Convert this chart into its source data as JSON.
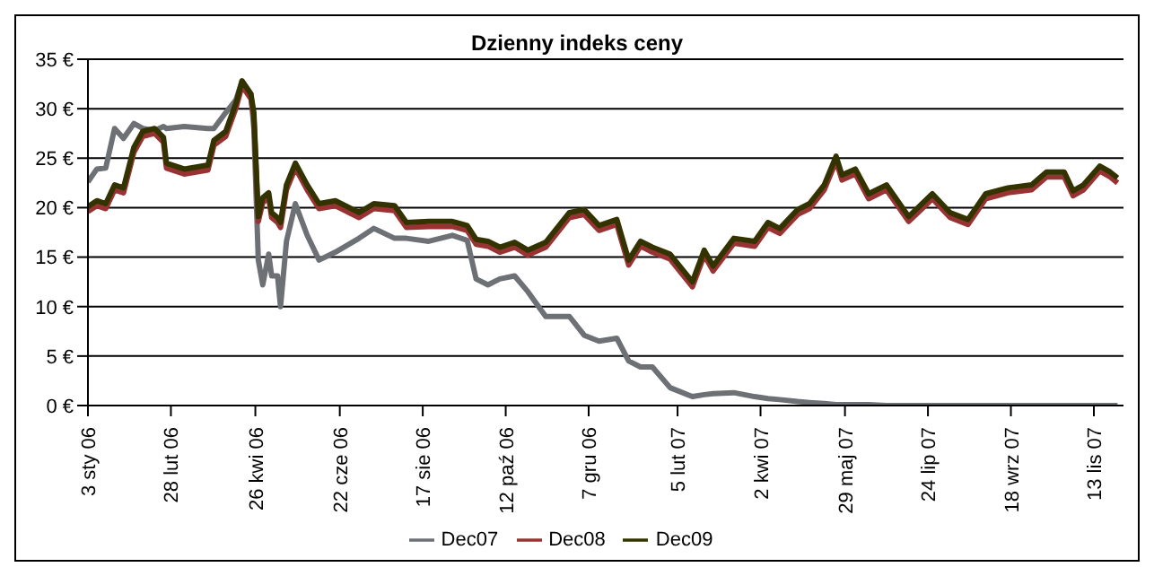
{
  "chart_data": {
    "type": "line",
    "title": "Dzienny indeks ceny",
    "x": [
      "2006-01-03",
      "2006-01-09",
      "2006-01-15",
      "2006-01-21",
      "2006-01-27",
      "2006-02-03",
      "2006-02-09",
      "2006-02-17",
      "2006-02-23",
      "2006-02-25",
      "2006-03-09",
      "2006-03-25",
      "2006-03-29",
      "2006-04-06",
      "2006-04-13",
      "2006-04-17",
      "2006-04-23",
      "2006-04-25",
      "2006-04-28",
      "2006-05-01",
      "2006-05-05",
      "2006-05-07",
      "2006-05-11",
      "2006-05-13",
      "2006-05-17",
      "2006-05-23",
      "2006-05-31",
      "2006-06-08",
      "2006-06-19",
      "2006-07-05",
      "2006-07-15",
      "2006-07-29",
      "2006-08-06",
      "2006-08-21",
      "2006-09-06",
      "2006-09-16",
      "2006-09-22",
      "2006-09-30",
      "2006-10-08",
      "2006-10-18",
      "2006-10-27",
      "2006-11-08",
      "2006-11-24",
      "2006-12-04",
      "2006-12-14",
      "2006-12-26",
      "2007-01-03",
      "2007-01-11",
      "2007-01-19",
      "2007-01-31",
      "2007-02-15",
      "2007-02-23",
      "2007-03-01",
      "2007-03-15",
      "2007-03-29",
      "2007-04-07",
      "2007-04-15",
      "2007-04-27",
      "2007-05-05",
      "2007-05-15",
      "2007-05-23",
      "2007-05-27",
      "2007-06-05",
      "2007-06-14",
      "2007-06-26",
      "2007-07-11",
      "2007-07-27",
      "2007-08-08",
      "2007-08-20",
      "2007-09-01",
      "2007-09-16",
      "2007-10-02",
      "2007-10-12",
      "2007-10-24",
      "2007-10-30",
      "2007-11-06",
      "2007-11-17",
      "2007-11-24",
      "2007-11-29"
    ],
    "series": [
      {
        "name": "Dec07",
        "color": "#6d7075",
        "values": [
          22.6,
          23.9,
          24,
          28,
          27,
          28.5,
          28,
          27.8,
          28.2,
          28,
          28.2,
          28,
          28,
          29.6,
          30.9,
          32.8,
          31.5,
          28,
          14.7,
          12.2,
          15.3,
          13.1,
          13.1,
          10,
          16.6,
          20.4,
          17.2,
          14.7,
          15.5,
          16.9,
          17.9,
          16.9,
          16.9,
          16.6,
          17.2,
          16.7,
          12.8,
          12.2,
          12.8,
          13.1,
          11.5,
          9,
          9,
          7.1,
          6.5,
          6.8,
          4.5,
          3.9,
          3.9,
          1.8,
          0.9,
          1.1,
          1.2,
          1.3,
          0.9,
          0.7,
          0.6,
          0.4,
          0.3,
          0.2,
          0.1,
          0.1,
          0.1,
          0.1,
          0,
          0,
          0,
          0,
          0,
          0,
          0,
          0,
          0,
          0,
          0,
          0,
          0,
          0,
          0
        ]
      },
      {
        "name": "Dec08",
        "color": "#993333",
        "values": [
          19.6,
          20.2,
          19.9,
          21.8,
          21.5,
          25.6,
          27.2,
          27.5,
          26.6,
          24,
          23.4,
          23.8,
          26.3,
          27.2,
          30.1,
          32.3,
          31,
          29.1,
          18.6,
          20.5,
          21,
          19,
          18.5,
          18,
          21.8,
          24,
          21.8,
          19.9,
          20.2,
          19,
          19.9,
          19.7,
          18,
          18.1,
          18.1,
          17.7,
          16.3,
          16.1,
          15.5,
          16,
          15.2,
          16,
          19,
          19.3,
          17.7,
          18.3,
          14.2,
          16.1,
          15.5,
          14.8,
          12,
          15.2,
          13.6,
          16.4,
          16.1,
          18,
          17.4,
          19.3,
          19.9,
          21.8,
          24.7,
          22.8,
          23.4,
          20.9,
          21.8,
          18.6,
          20.9,
          19,
          18.3,
          20.9,
          21.5,
          21.8,
          23.1,
          23.1,
          21.2,
          21.8,
          23.7,
          23.1,
          22.5
        ]
      },
      {
        "name": "Dec09",
        "color": "#333300",
        "values": [
          20.1,
          20.7,
          20.4,
          22.3,
          22,
          26.1,
          27.7,
          28,
          27.1,
          24.5,
          23.9,
          24.3,
          26.8,
          27.7,
          30.6,
          32.8,
          31.5,
          29.6,
          19.1,
          21,
          21.5,
          19.5,
          19,
          18.5,
          22.3,
          24.5,
          22.3,
          20.4,
          20.7,
          19.5,
          20.4,
          20.2,
          18.5,
          18.6,
          18.6,
          18.2,
          16.8,
          16.6,
          16,
          16.5,
          15.7,
          16.5,
          19.5,
          19.8,
          18.2,
          18.8,
          14.7,
          16.6,
          16,
          15.3,
          12.5,
          15.7,
          14.1,
          16.9,
          16.6,
          18.5,
          17.9,
          19.8,
          20.4,
          22.3,
          25.2,
          23.3,
          23.9,
          21.4,
          22.3,
          19.1,
          21.4,
          19.5,
          18.8,
          21.4,
          22,
          22.3,
          23.6,
          23.6,
          21.7,
          22.3,
          24.2,
          23.6,
          23
        ]
      }
    ],
    "xlim": [
      "2006-01-03",
      "2007-12-03"
    ],
    "xticks": [
      {
        "value": "2006-01-03",
        "label": "3 sty 06"
      },
      {
        "value": "2006-02-28",
        "label": "28 lut 06"
      },
      {
        "value": "2006-04-26",
        "label": "26 kwi 06"
      },
      {
        "value": "2006-06-22",
        "label": "22 cze 06"
      },
      {
        "value": "2006-08-17",
        "label": "17 sie 06"
      },
      {
        "value": "2006-10-12",
        "label": "12 paź 06"
      },
      {
        "value": "2006-12-07",
        "label": "7 gru 06"
      },
      {
        "value": "2007-02-05",
        "label": "5 lut 07"
      },
      {
        "value": "2007-04-02",
        "label": "2 kwi 07"
      },
      {
        "value": "2007-05-29",
        "label": "29 maj 07"
      },
      {
        "value": "2007-07-24",
        "label": "24 lip 07"
      },
      {
        "value": "2007-09-18",
        "label": "18 wrz 07"
      },
      {
        "value": "2007-11-13",
        "label": "13 lis 07"
      }
    ],
    "ylim": [
      0,
      35
    ],
    "yticks": [
      {
        "value": 0,
        "label": "0 €"
      },
      {
        "value": 5,
        "label": "5 €"
      },
      {
        "value": 10,
        "label": "10 €"
      },
      {
        "value": 15,
        "label": "15 €"
      },
      {
        "value": 20,
        "label": "20 €"
      },
      {
        "value": 25,
        "label": "25 €"
      },
      {
        "value": 30,
        "label": "30 €"
      },
      {
        "value": 35,
        "label": "35 €"
      }
    ],
    "grid": "y",
    "legend": "bottom"
  }
}
